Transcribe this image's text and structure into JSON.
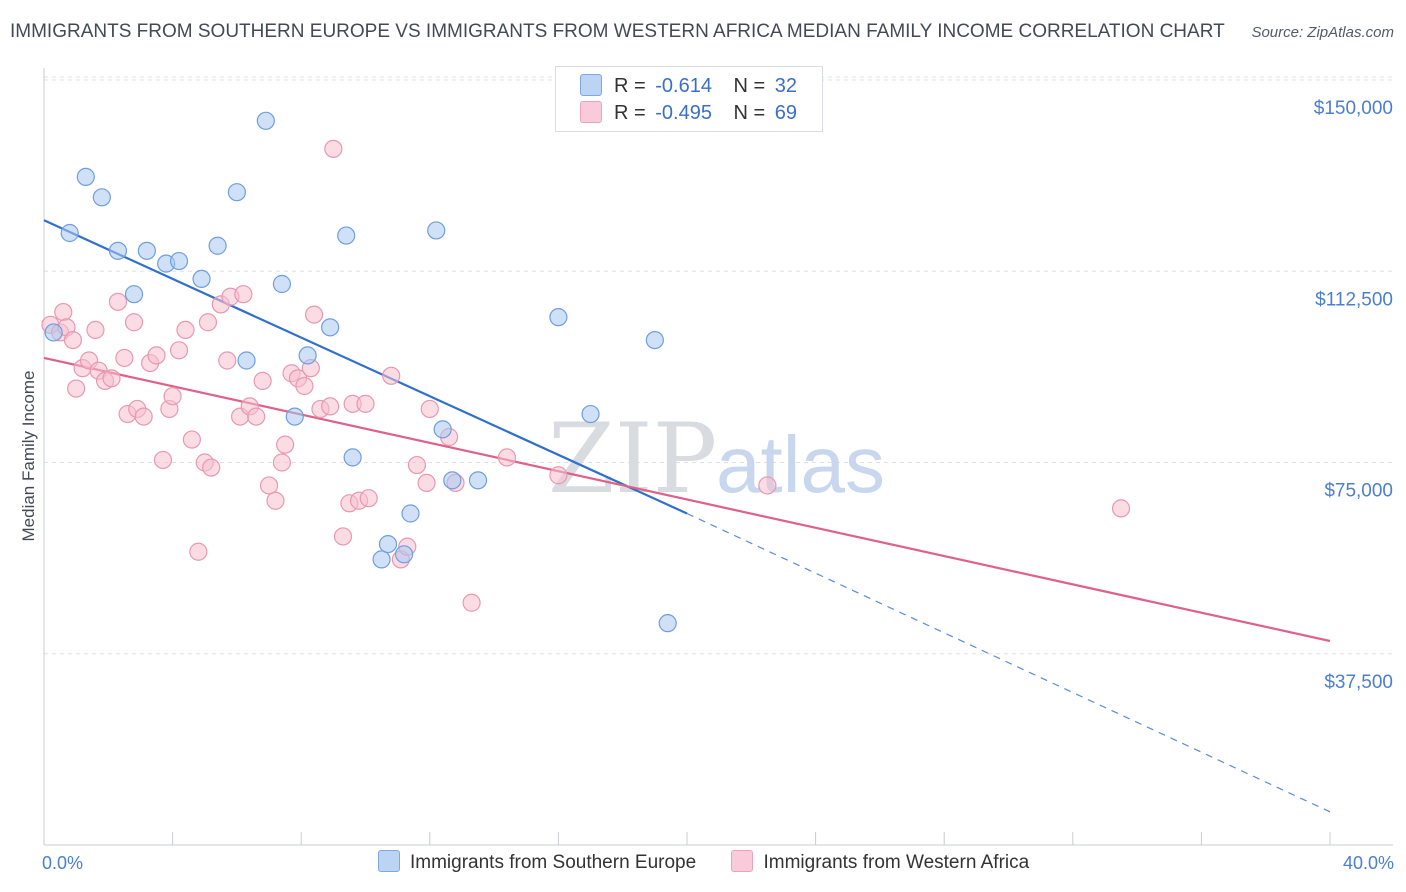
{
  "title": "IMMIGRANTS FROM SOUTHERN EUROPE VS IMMIGRANTS FROM WESTERN AFRICA MEDIAN FAMILY INCOME CORRELATION CHART",
  "source": "Source: ZipAtlas.com",
  "watermark": {
    "zip": "ZIP",
    "atlas": "atlas"
  },
  "legend": {
    "rows": [
      {
        "r_label": "R =",
        "r_value": "-0.614",
        "n_label": "N =",
        "n_value": "32"
      },
      {
        "r_label": "R =",
        "r_value": "-0.495",
        "n_label": "N =",
        "n_value": "69"
      }
    ]
  },
  "colors": {
    "blue_fill": "#a9c8f0",
    "blue_stroke": "#6e9fe0",
    "blue_line": "#2f6fd0",
    "pink_fill": "#f7bfd0",
    "pink_stroke": "#e898b2",
    "pink_line": "#e0608a",
    "tick_text": "#4a7fd0",
    "grid": "#dde0e6"
  },
  "chart_data": {
    "type": "scatter",
    "title": "IMMIGRANTS FROM SOUTHERN EUROPE VS IMMIGRANTS FROM WESTERN AFRICA MEDIAN FAMILY INCOME CORRELATION CHART",
    "xlabel": "",
    "ylabel": "Median Family Income",
    "xlim": [
      0,
      40
    ],
    "ylim": [
      0,
      156000
    ],
    "x_tick_labels": [
      "0.0%",
      "40.0%"
    ],
    "y_ticks": [
      37500,
      75000,
      112500,
      150000
    ],
    "y_tick_labels": [
      "$37,500",
      "$75,000",
      "$112,500",
      "$150,000"
    ],
    "grid": true,
    "legend_position": "top-center",
    "series": [
      {
        "name": "Immigrants from Southern Europe",
        "color": "#a9c8f0",
        "points": [
          {
            "x": 0.3,
            "y": 100500
          },
          {
            "x": 0.8,
            "y": 120000
          },
          {
            "x": 1.3,
            "y": 131000
          },
          {
            "x": 1.8,
            "y": 127000
          },
          {
            "x": 2.3,
            "y": 116500
          },
          {
            "x": 2.8,
            "y": 108000
          },
          {
            "x": 3.2,
            "y": 116500
          },
          {
            "x": 3.8,
            "y": 114000
          },
          {
            "x": 4.2,
            "y": 114500
          },
          {
            "x": 4.9,
            "y": 111000
          },
          {
            "x": 5.4,
            "y": 117500
          },
          {
            "x": 6.0,
            "y": 128000
          },
          {
            "x": 6.3,
            "y": 95000
          },
          {
            "x": 6.9,
            "y": 142000
          },
          {
            "x": 7.4,
            "y": 110000
          },
          {
            "x": 7.8,
            "y": 84000
          },
          {
            "x": 8.2,
            "y": 96000
          },
          {
            "x": 8.9,
            "y": 101500
          },
          {
            "x": 9.4,
            "y": 119500
          },
          {
            "x": 9.6,
            "y": 76000
          },
          {
            "x": 10.5,
            "y": 56000
          },
          {
            "x": 10.7,
            "y": 59000
          },
          {
            "x": 11.2,
            "y": 57000
          },
          {
            "x": 11.4,
            "y": 65000
          },
          {
            "x": 12.2,
            "y": 120500
          },
          {
            "x": 12.4,
            "y": 81500
          },
          {
            "x": 12.7,
            "y": 71500
          },
          {
            "x": 13.5,
            "y": 71500
          },
          {
            "x": 16.0,
            "y": 103500
          },
          {
            "x": 17.0,
            "y": 84500
          },
          {
            "x": 19.0,
            "y": 99000
          },
          {
            "x": 19.4,
            "y": 43500
          }
        ]
      },
      {
        "name": "Immigrants from Western Africa",
        "color": "#f7bfd0",
        "points": [
          {
            "x": 0.2,
            "y": 102000
          },
          {
            "x": 0.5,
            "y": 100500
          },
          {
            "x": 0.6,
            "y": 104500
          },
          {
            "x": 0.7,
            "y": 101500
          },
          {
            "x": 0.9,
            "y": 99000
          },
          {
            "x": 1.0,
            "y": 89500
          },
          {
            "x": 1.2,
            "y": 93500
          },
          {
            "x": 1.4,
            "y": 95000
          },
          {
            "x": 1.6,
            "y": 101000
          },
          {
            "x": 1.7,
            "y": 93000
          },
          {
            "x": 1.9,
            "y": 91000
          },
          {
            "x": 2.1,
            "y": 91500
          },
          {
            "x": 2.3,
            "y": 106500
          },
          {
            "x": 2.5,
            "y": 95500
          },
          {
            "x": 2.6,
            "y": 84500
          },
          {
            "x": 2.8,
            "y": 102500
          },
          {
            "x": 2.9,
            "y": 85500
          },
          {
            "x": 3.1,
            "y": 84000
          },
          {
            "x": 3.3,
            "y": 94500
          },
          {
            "x": 3.5,
            "y": 96000
          },
          {
            "x": 3.7,
            "y": 75500
          },
          {
            "x": 3.9,
            "y": 85500
          },
          {
            "x": 4.0,
            "y": 88000
          },
          {
            "x": 4.2,
            "y": 97000
          },
          {
            "x": 4.4,
            "y": 101000
          },
          {
            "x": 4.6,
            "y": 79500
          },
          {
            "x": 4.8,
            "y": 57500
          },
          {
            "x": 5.0,
            "y": 75000
          },
          {
            "x": 5.1,
            "y": 102500
          },
          {
            "x": 5.2,
            "y": 74000
          },
          {
            "x": 5.5,
            "y": 106000
          },
          {
            "x": 5.7,
            "y": 95000
          },
          {
            "x": 5.8,
            "y": 107500
          },
          {
            "x": 6.1,
            "y": 84000
          },
          {
            "x": 6.2,
            "y": 108000
          },
          {
            "x": 6.4,
            "y": 86000
          },
          {
            "x": 6.6,
            "y": 84000
          },
          {
            "x": 6.8,
            "y": 91000
          },
          {
            "x": 7.0,
            "y": 70500
          },
          {
            "x": 7.2,
            "y": 67500
          },
          {
            "x": 7.4,
            "y": 75000
          },
          {
            "x": 7.5,
            "y": 78500
          },
          {
            "x": 7.7,
            "y": 92500
          },
          {
            "x": 7.9,
            "y": 91500
          },
          {
            "x": 8.1,
            "y": 90000
          },
          {
            "x": 8.3,
            "y": 93500
          },
          {
            "x": 8.4,
            "y": 104000
          },
          {
            "x": 8.6,
            "y": 85500
          },
          {
            "x": 8.9,
            "y": 86000
          },
          {
            "x": 9.0,
            "y": 136500
          },
          {
            "x": 9.3,
            "y": 60500
          },
          {
            "x": 9.5,
            "y": 67000
          },
          {
            "x": 9.6,
            "y": 86500
          },
          {
            "x": 9.8,
            "y": 67500
          },
          {
            "x": 10.0,
            "y": 86500
          },
          {
            "x": 10.1,
            "y": 68000
          },
          {
            "x": 10.8,
            "y": 92000
          },
          {
            "x": 11.1,
            "y": 56000
          },
          {
            "x": 11.3,
            "y": 58500
          },
          {
            "x": 11.6,
            "y": 74500
          },
          {
            "x": 11.9,
            "y": 71000
          },
          {
            "x": 12.0,
            "y": 85500
          },
          {
            "x": 12.6,
            "y": 80000
          },
          {
            "x": 12.8,
            "y": 71000
          },
          {
            "x": 13.3,
            "y": 47500
          },
          {
            "x": 14.4,
            "y": 76000
          },
          {
            "x": 16.0,
            "y": 72500
          },
          {
            "x": 22.5,
            "y": 70500
          },
          {
            "x": 33.5,
            "y": 66000
          }
        ]
      }
    ],
    "trend_lines": [
      {
        "series": "Immigrants from Southern Europe",
        "x_start": 0,
        "y_start": 122500,
        "x_end": 20,
        "y_end": 65000,
        "dashed_x_end": 40,
        "dashed_y_end": 6500
      },
      {
        "series": "Immigrants from Western Africa",
        "x_start": 0,
        "y_start": 95500,
        "x_end": 40,
        "y_end": 40000
      }
    ]
  }
}
